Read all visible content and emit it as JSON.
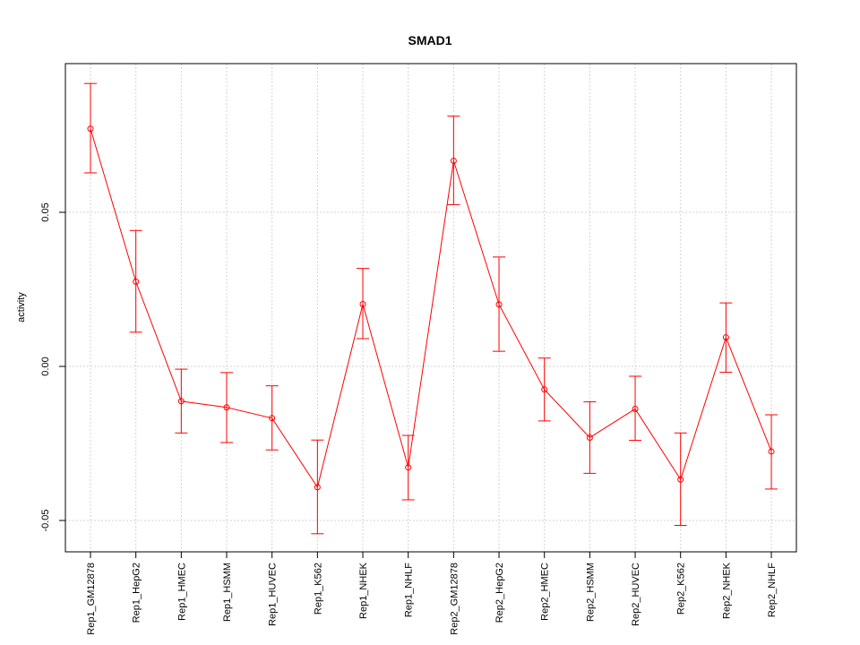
{
  "chart_data": {
    "type": "line",
    "title": "SMAD1",
    "xlabel": "",
    "ylabel": "activity",
    "ylim": [
      -0.06,
      0.098
    ],
    "yticks": [
      "-0.05",
      "0.00",
      "0.05"
    ],
    "grid": true,
    "color": "#ff0000",
    "categories": [
      "Rep1_GM12878",
      "Rep1_HepG2",
      "Rep1_HMEC",
      "Rep1_HSMM",
      "Rep1_HUVEC",
      "Rep1_K562",
      "Rep1_NHEK",
      "Rep1_NHLF",
      "Rep2_GM12878",
      "Rep2_HepG2",
      "Rep2_HMEC",
      "Rep2_HSMM",
      "Rep2_HUVEC",
      "Rep2_K562",
      "Rep2_NHEK",
      "Rep2_NHLF"
    ],
    "series": [
      {
        "values": [
          0.0771,
          0.0275,
          -0.0113,
          -0.0133,
          -0.0168,
          -0.0392,
          0.0202,
          -0.0328,
          0.0667,
          0.0201,
          -0.0075,
          -0.0231,
          -0.0138,
          -0.0367,
          0.0094,
          -0.0276
        ],
        "lower": [
          0.0628,
          0.0111,
          -0.0216,
          -0.0247,
          -0.0271,
          -0.0543,
          0.009,
          -0.0433,
          0.0525,
          0.0049,
          -0.0177,
          -0.0347,
          -0.024,
          -0.0516,
          -0.0019,
          -0.0398
        ],
        "upper": [
          0.0918,
          0.0441,
          -0.0009,
          -0.002,
          -0.0063,
          -0.0239,
          0.0318,
          -0.0224,
          0.0812,
          0.0355,
          0.0027,
          -0.0115,
          -0.0032,
          -0.0216,
          0.0206,
          -0.0157
        ]
      }
    ]
  }
}
